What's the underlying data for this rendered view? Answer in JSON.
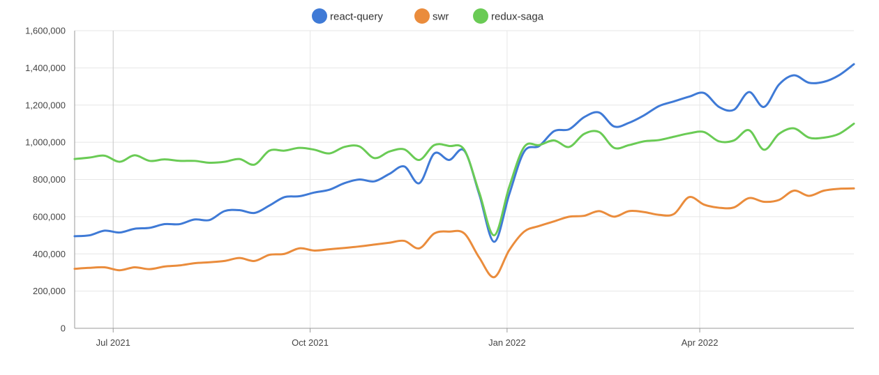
{
  "chart_data": {
    "type": "line",
    "title": "",
    "xlabel": "",
    "ylabel": "",
    "ylim": [
      0,
      1600000
    ],
    "yticks": [
      0,
      200000,
      400000,
      600000,
      800000,
      1000000,
      1200000,
      1400000,
      1600000
    ],
    "ytick_labels": [
      "0",
      "200,000",
      "400,000",
      "600,000",
      "800,000",
      "1,000,000",
      "1,200,000",
      "1,400,000",
      "1,600,000"
    ],
    "xlim": [
      "2021-06-13",
      "2022-06-12"
    ],
    "xticks": [
      "2021-07-01",
      "2021-10-01",
      "2022-01-01",
      "2022-04-01"
    ],
    "xtick_labels": [
      "Jul 2021",
      "Oct 2021",
      "Jan 2022",
      "Apr 2022"
    ],
    "grid": true,
    "legend_position": "top-center",
    "x": [
      "2021-06-13",
      "2021-06-20",
      "2021-06-27",
      "2021-07-04",
      "2021-07-11",
      "2021-07-18",
      "2021-07-25",
      "2021-08-01",
      "2021-08-08",
      "2021-08-15",
      "2021-08-22",
      "2021-08-29",
      "2021-09-05",
      "2021-09-12",
      "2021-09-19",
      "2021-09-26",
      "2021-10-03",
      "2021-10-10",
      "2021-10-17",
      "2021-10-24",
      "2021-10-31",
      "2021-11-07",
      "2021-11-14",
      "2021-11-21",
      "2021-11-28",
      "2021-12-05",
      "2021-12-12",
      "2021-12-19",
      "2021-12-26",
      "2022-01-02",
      "2022-01-09",
      "2022-01-16",
      "2022-01-23",
      "2022-01-30",
      "2022-02-06",
      "2022-02-13",
      "2022-02-20",
      "2022-02-27",
      "2022-03-06",
      "2022-03-13",
      "2022-03-20",
      "2022-03-27",
      "2022-04-03",
      "2022-04-10",
      "2022-04-17",
      "2022-04-24",
      "2022-05-01",
      "2022-05-08",
      "2022-05-15",
      "2022-05-22",
      "2022-05-29",
      "2022-06-05",
      "2022-06-12"
    ],
    "series": [
      {
        "name": "react-query",
        "color": "#3f7ad6",
        "values": [
          495000,
          500000,
          525000,
          515000,
          535000,
          540000,
          560000,
          560000,
          585000,
          582000,
          630000,
          635000,
          620000,
          660000,
          705000,
          710000,
          730000,
          745000,
          780000,
          800000,
          790000,
          830000,
          870000,
          780000,
          940000,
          905000,
          955000,
          720000,
          465000,
          720000,
          950000,
          980000,
          1060000,
          1070000,
          1135000,
          1160000,
          1085000,
          1105000,
          1145000,
          1195000,
          1220000,
          1245000,
          1265000,
          1190000,
          1175000,
          1270000,
          1190000,
          1310000,
          1360000,
          1320000,
          1325000,
          1360000,
          1420000
        ]
      },
      {
        "name": "swr",
        "color": "#ea8c3c",
        "values": [
          320000,
          325000,
          328000,
          312000,
          328000,
          318000,
          332000,
          338000,
          350000,
          355000,
          362000,
          378000,
          362000,
          395000,
          400000,
          430000,
          418000,
          425000,
          432000,
          440000,
          450000,
          460000,
          470000,
          430000,
          510000,
          520000,
          510000,
          380000,
          275000,
          420000,
          520000,
          550000,
          575000,
          600000,
          605000,
          630000,
          600000,
          630000,
          625000,
          610000,
          615000,
          705000,
          665000,
          648000,
          650000,
          700000,
          680000,
          690000,
          740000,
          712000,
          740000,
          750000,
          752000
        ]
      },
      {
        "name": "redux-saga",
        "color": "#6acb55",
        "values": [
          910000,
          918000,
          928000,
          895000,
          930000,
          900000,
          908000,
          900000,
          900000,
          890000,
          895000,
          910000,
          880000,
          955000,
          955000,
          970000,
          960000,
          940000,
          975000,
          978000,
          915000,
          950000,
          962000,
          905000,
          985000,
          980000,
          960000,
          730000,
          500000,
          760000,
          975000,
          985000,
          1010000,
          975000,
          1045000,
          1055000,
          970000,
          985000,
          1005000,
          1012000,
          1030000,
          1048000,
          1055000,
          1005000,
          1010000,
          1065000,
          960000,
          1045000,
          1075000,
          1025000,
          1025000,
          1045000,
          1100000
        ]
      }
    ]
  }
}
